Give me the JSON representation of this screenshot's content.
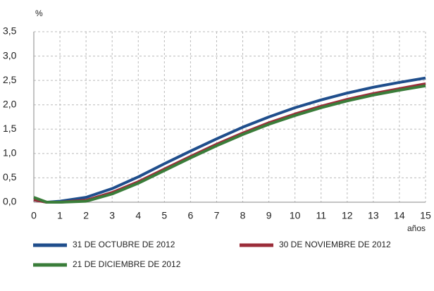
{
  "chart_data": {
    "type": "line",
    "y_label": "%",
    "x_label": "años",
    "x": [
      0,
      0.5,
      1,
      2,
      3,
      4,
      5,
      6,
      7,
      8,
      9,
      10,
      11,
      12,
      13,
      14,
      15
    ],
    "series": [
      {
        "name": "31 DE OCTUBRE DE 2012",
        "color": "#1f4e8c",
        "values": [
          0.05,
          0.0,
          0.02,
          0.1,
          0.28,
          0.52,
          0.79,
          1.05,
          1.3,
          1.54,
          1.75,
          1.94,
          2.1,
          2.24,
          2.36,
          2.46,
          2.55
        ]
      },
      {
        "name": "30 DE NOVIEMBRE DE 2012",
        "color": "#9b2d3a",
        "values": [
          0.05,
          0.0,
          0.0,
          0.04,
          0.2,
          0.42,
          0.68,
          0.94,
          1.19,
          1.42,
          1.63,
          1.81,
          1.97,
          2.11,
          2.23,
          2.33,
          2.43
        ]
      },
      {
        "name": "21 DE DICIEMBRE DE 2012",
        "color": "#3a7d3a",
        "values": [
          0.1,
          0.0,
          0.0,
          0.02,
          0.17,
          0.39,
          0.65,
          0.91,
          1.16,
          1.39,
          1.6,
          1.78,
          1.94,
          2.08,
          2.2,
          2.3,
          2.39
        ]
      }
    ],
    "xlim": [
      0,
      15
    ],
    "xticks": [
      0,
      1,
      2,
      3,
      4,
      5,
      6,
      7,
      8,
      9,
      10,
      11,
      12,
      13,
      14,
      15
    ],
    "ylim": [
      0,
      3.5
    ],
    "yticks": [
      {
        "value": 0,
        "label": "0,0"
      },
      {
        "value": 0.5,
        "label": "0,5"
      },
      {
        "value": 1,
        "label": "1,0"
      },
      {
        "value": 1.5,
        "label": "1,5"
      },
      {
        "value": 2,
        "label": "2,0"
      },
      {
        "value": 2.5,
        "label": "2,5"
      },
      {
        "value": 3,
        "label": "3,0"
      },
      {
        "value": 3.5,
        "label": "3,5"
      }
    ],
    "grid": true
  }
}
